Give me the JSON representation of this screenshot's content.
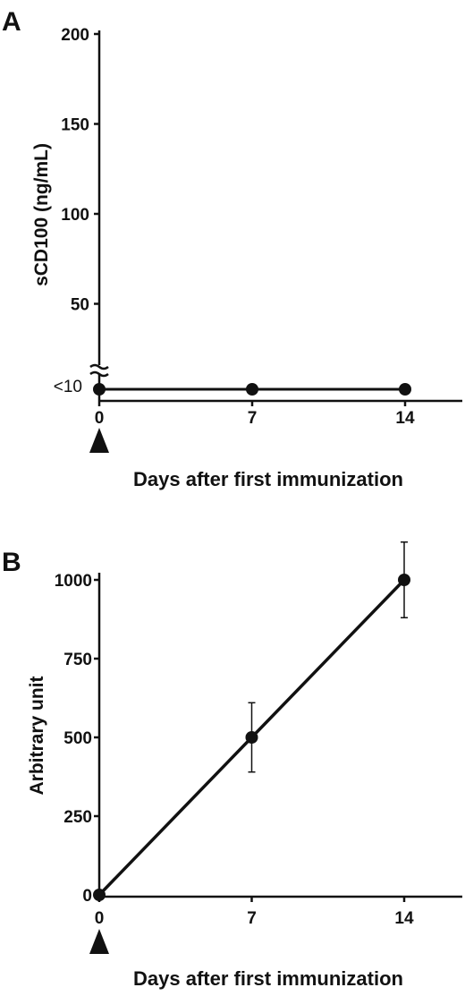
{
  "chart_data": [
    {
      "panel": "A",
      "type": "line",
      "xlabel": "Days after first immunization",
      "ylabel": "sCD100 (ng/mL)",
      "x_ticks": [
        "0",
        "7",
        "14"
      ],
      "y_ticks": [
        "50",
        "100",
        "150",
        "200"
      ],
      "y_break_label": "<10",
      "x_marker": "arrow at 0",
      "xlim": [
        0,
        17
      ],
      "ylim": [
        0,
        200
      ],
      "axis_break": true,
      "series": [
        {
          "x": [
            0,
            7,
            14
          ],
          "y": [
            0,
            0,
            0
          ]
        }
      ]
    },
    {
      "panel": "B",
      "type": "line",
      "xlabel": "Days after first immunization",
      "ylabel": "Arbitrary unit",
      "x_ticks": [
        "0",
        "7",
        "14"
      ],
      "y_ticks": [
        "0",
        "250",
        "500",
        "750",
        "1000"
      ],
      "x_marker": "arrow at 0",
      "xlim": [
        0,
        17
      ],
      "ylim": [
        0,
        1000
      ],
      "series": [
        {
          "x": [
            0,
            7,
            14
          ],
          "y": [
            0,
            500,
            1000
          ],
          "error": [
            0,
            110,
            120
          ]
        }
      ]
    }
  ]
}
